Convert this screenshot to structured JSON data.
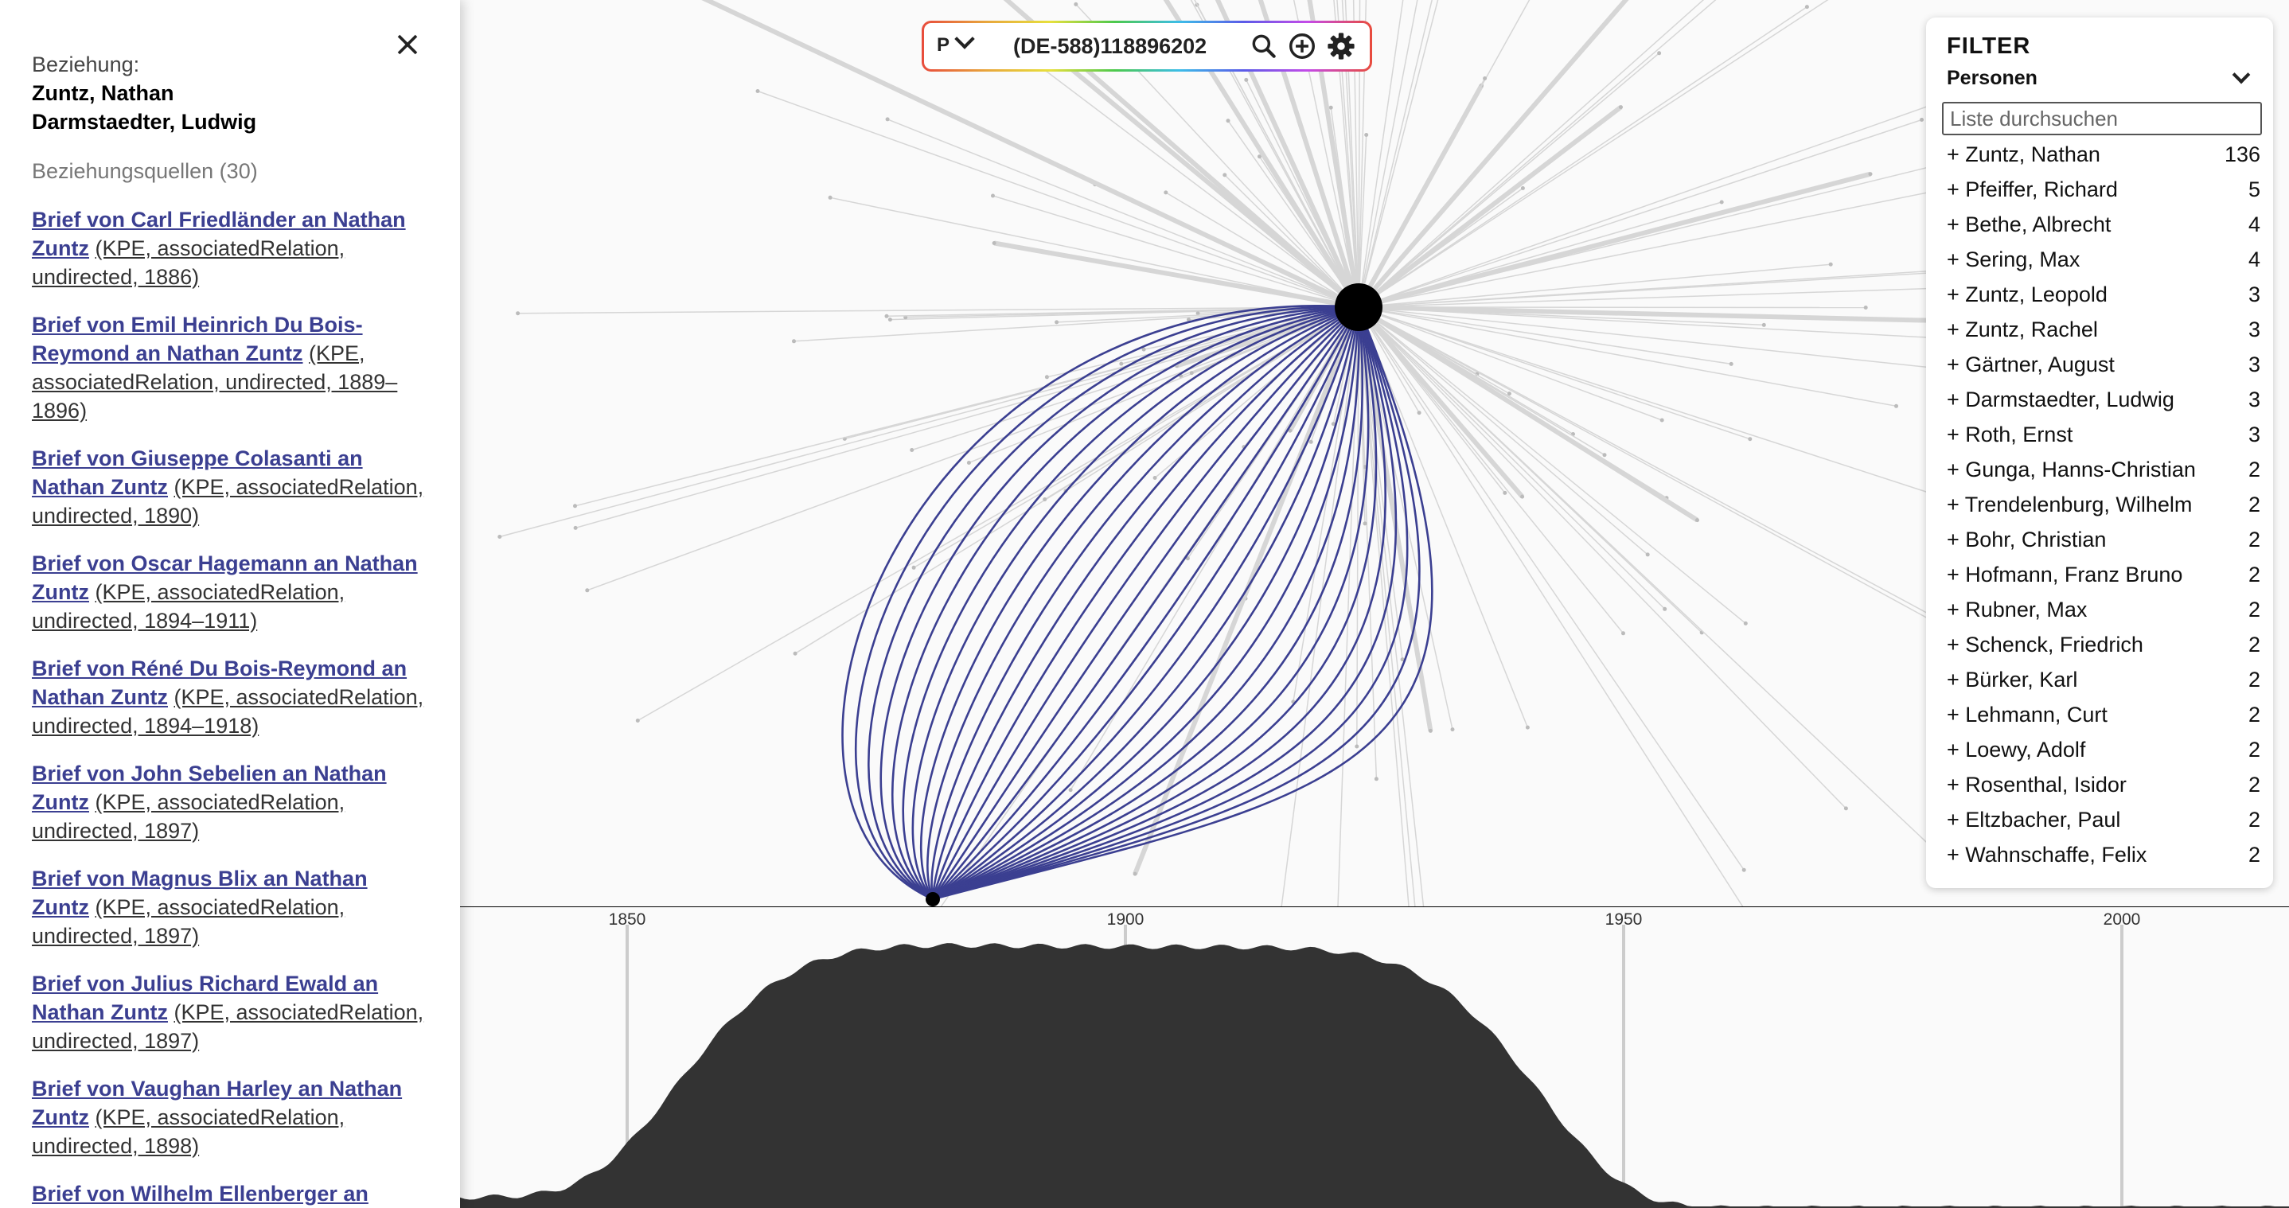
{
  "left_panel": {
    "relation_label": "Beziehung:",
    "person_a": "Zuntz, Nathan",
    "person_b": "Darmstaedter, Ludwig",
    "sources_heading": "Beziehungsquellen (30)",
    "sources": [
      {
        "title": "Brief von Carl Friedländer an Nathan Zuntz",
        "meta": "(KPE, associatedRelation, undirected, 1886)"
      },
      {
        "title": "Brief von Emil Heinrich Du Bois-Reymond an Nathan Zuntz",
        "meta": "(KPE, associatedRelation, undirected, 1889–1896)"
      },
      {
        "title": "Brief von Giuseppe Colasanti an Nathan Zuntz",
        "meta": "(KPE, associatedRelation, undirected, 1890)"
      },
      {
        "title": "Brief von Oscar Hagemann an Nathan Zuntz",
        "meta": "(KPE, associatedRelation, undirected, 1894–1911)"
      },
      {
        "title": "Brief von Réné Du Bois-Reymond an Nathan Zuntz",
        "meta": "(KPE, associatedRelation, undirected, 1894–1918)"
      },
      {
        "title": "Brief von John Sebelien an Nathan Zuntz",
        "meta": "(KPE, associatedRelation, undirected, 1897)"
      },
      {
        "title": "Brief von Magnus Blix an Nathan Zuntz",
        "meta": "(KPE, associatedRelation, undirected, 1897)"
      },
      {
        "title": "Brief von Julius Richard Ewald an Nathan Zuntz",
        "meta": "(KPE, associatedRelation, undirected, 1897)"
      },
      {
        "title": "Brief von Vaughan Harley an Nathan Zuntz",
        "meta": "(KPE, associatedRelation, undirected, 1898)"
      },
      {
        "title": "Brief von Wilhelm Ellenberger an",
        "meta": ""
      }
    ]
  },
  "search": {
    "type_value": "P",
    "query": "(DE-588)118896202",
    "icons": [
      "search-icon",
      "add-circle-icon",
      "gear-icon"
    ]
  },
  "filter": {
    "title": "FILTER",
    "category": "Personen",
    "search_placeholder": "Liste durchsuchen",
    "items": [
      {
        "label": "+ Zuntz, Nathan",
        "count": "136"
      },
      {
        "label": "+ Pfeiffer, Richard",
        "count": "5"
      },
      {
        "label": "+ Bethe, Albrecht",
        "count": "4"
      },
      {
        "label": "+ Sering, Max",
        "count": "4"
      },
      {
        "label": "+ Zuntz, Leopold",
        "count": "3"
      },
      {
        "label": "+ Zuntz, Rachel",
        "count": "3"
      },
      {
        "label": "+ Gärtner, August",
        "count": "3"
      },
      {
        "label": "+ Darmstaedter, Ludwig",
        "count": "3"
      },
      {
        "label": "+ Roth, Ernst",
        "count": "3"
      },
      {
        "label": "+ Gunga, Hanns-Christian",
        "count": "2"
      },
      {
        "label": "+ Trendelenburg, Wilhelm",
        "count": "2"
      },
      {
        "label": "+ Bohr, Christian",
        "count": "2"
      },
      {
        "label": "+ Hofmann, Franz Bruno",
        "count": "2"
      },
      {
        "label": "+ Rubner, Max",
        "count": "2"
      },
      {
        "label": "+ Schenck, Friedrich",
        "count": "2"
      },
      {
        "label": "+ Bürker, Karl",
        "count": "2"
      },
      {
        "label": "+ Lehmann, Curt",
        "count": "2"
      },
      {
        "label": "+ Loewy, Adolf",
        "count": "2"
      },
      {
        "label": "+ Rosenthal, Isidor",
        "count": "2"
      },
      {
        "label": "+ Eltzbacher, Paul",
        "count": "2"
      },
      {
        "label": "+ Wahnschaffe, Felix",
        "count": "2"
      }
    ]
  },
  "timeline": {
    "ticks": [
      "1850",
      "1900",
      "1950",
      "2000"
    ]
  },
  "colors": {
    "relation_curves": "#3b3f91",
    "link_text": "#3b3f91",
    "timeline_fill": "#333333"
  }
}
